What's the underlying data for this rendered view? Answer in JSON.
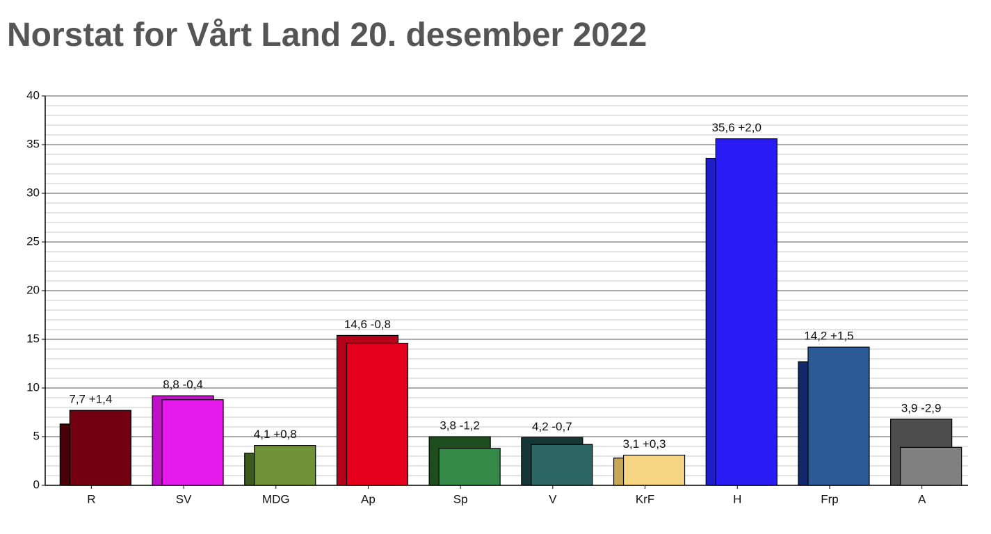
{
  "chart_data": {
    "type": "overlapped_bar",
    "title": "Norstat for Vårt Land 20. desember 2022",
    "categories": [
      "R",
      "SV",
      "MDG",
      "Ap",
      "Sp",
      "V",
      "KrF",
      "H",
      "Frp",
      "A"
    ],
    "series": [
      {
        "values": [
          6.3,
          9.2,
          3.3,
          15.4,
          5.0,
          4.9,
          2.8,
          33.6,
          12.7,
          6.8
        ],
        "colors": [
          "#4a0008",
          "#c010c8",
          "#3d5a1e",
          "#b5001a",
          "#1e4d1e",
          "#163535",
          "#c8a855",
          "#1e1ec8",
          "#13286a",
          "#4d4d4d"
        ]
      },
      {
        "values": [
          7.7,
          8.8,
          4.1,
          14.6,
          3.8,
          4.2,
          3.1,
          35.6,
          14.2,
          3.9
        ],
        "value_labels": [
          "7,7 +1,4",
          "8,8 -0,4",
          "4,1 +0,8",
          "14,6 -0,8",
          "3,8 -1,2",
          "4,2 -0,7",
          "3,1 +0,3",
          "35,6 +2,0",
          "14,2 +1,5",
          "3,9 -2,9"
        ],
        "colors": [
          "#730010",
          "#e619ed",
          "#6f9138",
          "#e6001e",
          "#358a4a",
          "#2b6566",
          "#f5d584",
          "#2a1cf5",
          "#2c5a94",
          "#808080"
        ]
      }
    ],
    "ylim": [
      0,
      40
    ],
    "yticks": [
      0,
      5,
      10,
      15,
      20,
      25,
      30,
      35,
      40
    ],
    "grid": true,
    "minor_grid": true
  }
}
